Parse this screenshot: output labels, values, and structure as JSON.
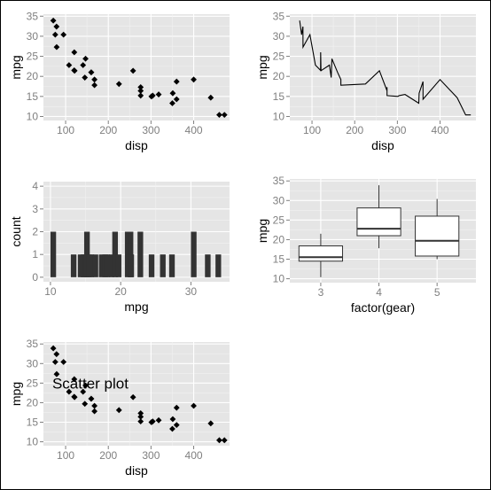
{
  "chart_data": [
    {
      "type": "scatter",
      "xlabel": "disp",
      "ylabel": "mpg",
      "xlim": [
        48,
        484
      ],
      "ylim": [
        9,
        35.5
      ],
      "xticks": [
        "100",
        "200",
        "300",
        "400"
      ],
      "xtick_values": [
        100,
        200,
        300,
        400
      ],
      "yticks": [
        "10",
        "15",
        "20",
        "25",
        "30",
        "35"
      ],
      "ytick_values": [
        10,
        15,
        20,
        25,
        30,
        35
      ],
      "grid": true,
      "points": [
        [
          160,
          21
        ],
        [
          160,
          21
        ],
        [
          108,
          22.8
        ],
        [
          258,
          21.4
        ],
        [
          360,
          18.7
        ],
        [
          225,
          18.1
        ],
        [
          360,
          14.3
        ],
        [
          146.7,
          24.4
        ],
        [
          140.8,
          22.8
        ],
        [
          167.6,
          19.2
        ],
        [
          167.6,
          17.8
        ],
        [
          275.8,
          16.4
        ],
        [
          275.8,
          17.3
        ],
        [
          275.8,
          15.2
        ],
        [
          472,
          10.4
        ],
        [
          460,
          10.4
        ],
        [
          440,
          14.7
        ],
        [
          78.7,
          32.4
        ],
        [
          75.7,
          30.4
        ],
        [
          71.1,
          33.9
        ],
        [
          120.1,
          21.5
        ],
        [
          318,
          15.5
        ],
        [
          304,
          15.2
        ],
        [
          350,
          13.3
        ],
        [
          400,
          19.2
        ],
        [
          79,
          27.3
        ],
        [
          120.3,
          26
        ],
        [
          95.1,
          30.4
        ],
        [
          351,
          15.8
        ],
        [
          145,
          19.7
        ],
        [
          301,
          15
        ],
        [
          121,
          21.4
        ]
      ]
    },
    {
      "type": "line",
      "xlabel": "disp",
      "ylabel": "mpg",
      "xlim": [
        48,
        484
      ],
      "ylim": [
        9,
        35.5
      ],
      "xticks": [
        "100",
        "200",
        "300",
        "400"
      ],
      "xtick_values": [
        100,
        200,
        300,
        400
      ],
      "yticks": [
        "10",
        "15",
        "20",
        "25",
        "30",
        "35"
      ],
      "ytick_values": [
        10,
        15,
        20,
        25,
        30,
        35
      ],
      "grid": true,
      "points": [
        [
          71.1,
          33.9
        ],
        [
          75.7,
          30.4
        ],
        [
          78.7,
          32.4
        ],
        [
          79,
          27.3
        ],
        [
          95.1,
          30.4
        ],
        [
          108,
          22.8
        ],
        [
          120.1,
          21.5
        ],
        [
          120.3,
          26
        ],
        [
          121,
          21.4
        ],
        [
          140.8,
          22.8
        ],
        [
          145,
          19.7
        ],
        [
          146.7,
          24.4
        ],
        [
          160,
          21
        ],
        [
          167.6,
          19.2
        ],
        [
          167.6,
          17.8
        ],
        [
          225,
          18.1
        ],
        [
          258,
          21.4
        ],
        [
          275.8,
          16.4
        ],
        [
          275.8,
          17.3
        ],
        [
          275.8,
          15.2
        ],
        [
          301,
          15
        ],
        [
          304,
          15.2
        ],
        [
          318,
          15.5
        ],
        [
          350,
          13.3
        ],
        [
          351,
          15.8
        ],
        [
          360,
          18.7
        ],
        [
          360,
          14.3
        ],
        [
          400,
          19.2
        ],
        [
          440,
          14.7
        ],
        [
          460,
          10.4
        ],
        [
          472,
          10.4
        ]
      ]
    },
    {
      "type": "bar",
      "xlabel": "mpg",
      "ylabel": "count",
      "xlim": [
        9,
        35.5
      ],
      "ylim": [
        -0.2,
        4.2
      ],
      "xticks": [
        "10",
        "20",
        "30"
      ],
      "xtick_values": [
        10,
        20,
        30
      ],
      "yticks": [
        "0",
        "1",
        "2",
        "3",
        "4"
      ],
      "ytick_values": [
        0,
        1,
        2,
        3,
        4
      ],
      "grid": true,
      "binwidth": 0.8,
      "bins": [
        [
          10.4,
          2
        ],
        [
          13.3,
          1
        ],
        [
          14.3,
          1
        ],
        [
          14.7,
          1
        ],
        [
          15,
          1
        ],
        [
          15.2,
          2
        ],
        [
          15.5,
          1
        ],
        [
          15.8,
          1
        ],
        [
          16.4,
          1
        ],
        [
          17.3,
          1
        ],
        [
          17.8,
          1
        ],
        [
          18.1,
          1
        ],
        [
          18.7,
          1
        ],
        [
          19.2,
          2
        ],
        [
          19.7,
          1
        ],
        [
          21,
          2
        ],
        [
          21.4,
          2
        ],
        [
          21.5,
          1
        ],
        [
          22.8,
          2
        ],
        [
          24.4,
          1
        ],
        [
          26,
          1
        ],
        [
          27.3,
          1
        ],
        [
          30.4,
          2
        ],
        [
          32.4,
          1
        ],
        [
          33.9,
          1
        ]
      ]
    },
    {
      "type": "box",
      "xlabel": "factor(gear)",
      "ylabel": "mpg",
      "ylim": [
        9,
        35.5
      ],
      "categories": [
        "3",
        "4",
        "5"
      ],
      "yticks": [
        "10",
        "15",
        "20",
        "25",
        "30",
        "35"
      ],
      "ytick_values": [
        10,
        15,
        20,
        25,
        30,
        35
      ],
      "grid": true,
      "boxes": [
        {
          "min": 10.4,
          "q1": 14.5,
          "median": 15.5,
          "q3": 18.4,
          "max": 21.5
        },
        {
          "min": 17.8,
          "q1": 21.0,
          "median": 22.8,
          "q3": 28.1,
          "max": 33.9
        },
        {
          "min": 15.0,
          "q1": 15.8,
          "median": 19.7,
          "q3": 26.0,
          "max": 30.4
        }
      ]
    },
    {
      "type": "scatter",
      "xlabel": "disp",
      "ylabel": "mpg",
      "xlim": [
        48,
        484
      ],
      "ylim": [
        9,
        35.5
      ],
      "xticks": [
        "100",
        "200",
        "300",
        "400"
      ],
      "xtick_values": [
        100,
        200,
        300,
        400
      ],
      "yticks": [
        "10",
        "15",
        "20",
        "25",
        "30",
        "35"
      ],
      "ytick_values": [
        10,
        15,
        20,
        25,
        30,
        35
      ],
      "grid": true,
      "annotation": {
        "text": "Scatter plot",
        "x": 158,
        "y": 25
      },
      "points": [
        [
          160,
          21
        ],
        [
          160,
          21
        ],
        [
          108,
          22.8
        ],
        [
          258,
          21.4
        ],
        [
          360,
          18.7
        ],
        [
          225,
          18.1
        ],
        [
          360,
          14.3
        ],
        [
          146.7,
          24.4
        ],
        [
          140.8,
          22.8
        ],
        [
          167.6,
          19.2
        ],
        [
          167.6,
          17.8
        ],
        [
          275.8,
          16.4
        ],
        [
          275.8,
          17.3
        ],
        [
          275.8,
          15.2
        ],
        [
          472,
          10.4
        ],
        [
          460,
          10.4
        ],
        [
          440,
          14.7
        ],
        [
          78.7,
          32.4
        ],
        [
          75.7,
          30.4
        ],
        [
          71.1,
          33.9
        ],
        [
          120.1,
          21.5
        ],
        [
          318,
          15.5
        ],
        [
          304,
          15.2
        ],
        [
          350,
          13.3
        ],
        [
          400,
          19.2
        ],
        [
          79,
          27.3
        ],
        [
          120.3,
          26
        ],
        [
          95.1,
          30.4
        ],
        [
          351,
          15.8
        ],
        [
          145,
          19.7
        ],
        [
          301,
          15
        ],
        [
          121,
          21.4
        ]
      ]
    }
  ],
  "colors": {
    "panel_bg": "#e5e5e5",
    "grid_major": "#ffffff",
    "grid_minor": "#f2f2f2",
    "tick_text": "#7f7f7f",
    "mark": "#000000",
    "bar_fill": "#333333",
    "box_fill": "#ffffff",
    "box_stroke": "#333333"
  }
}
